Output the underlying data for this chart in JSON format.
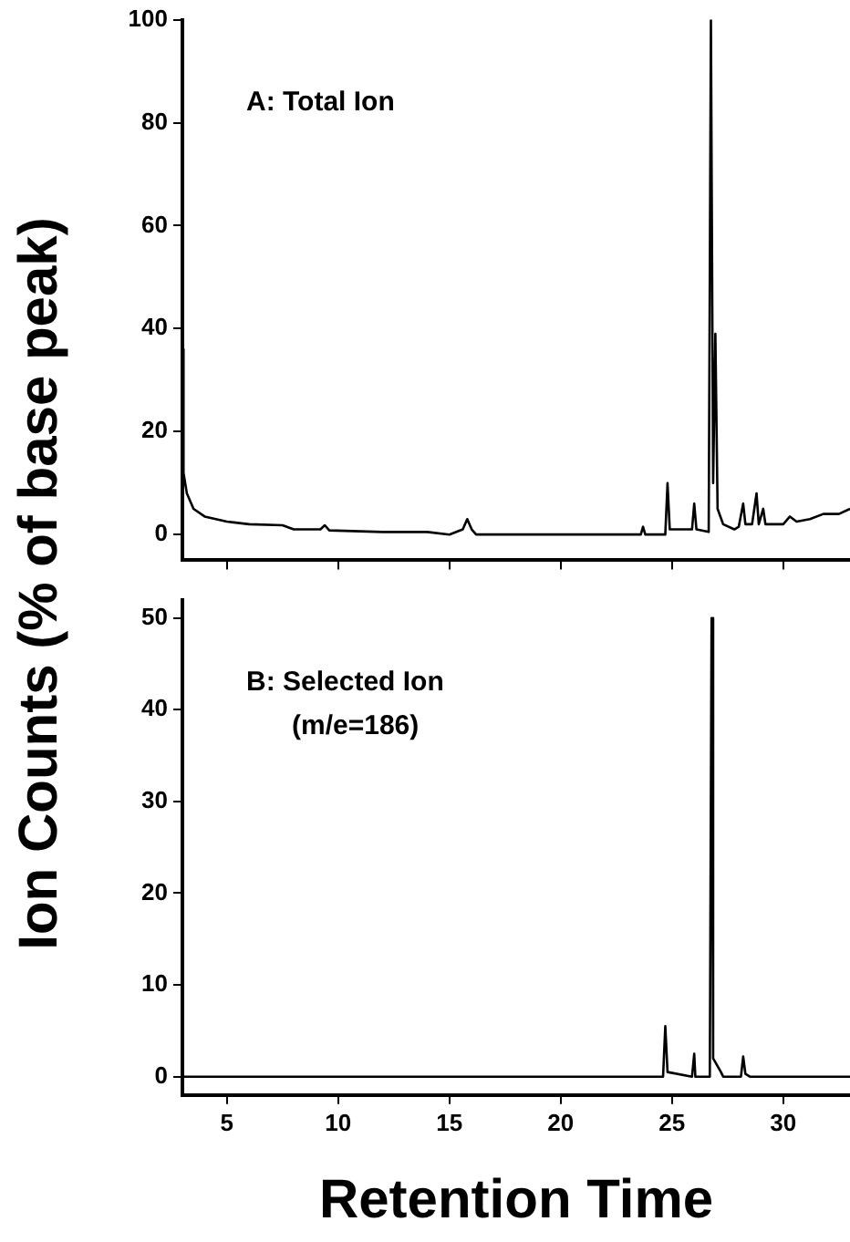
{
  "chart_data": [
    {
      "type": "line",
      "ylabel": "Ion Counts (% of base peak)",
      "annotations": [
        "A: Total Ion"
      ],
      "tick_labels": "y",
      "marker": "none",
      "xlim": [
        3,
        33
      ],
      "xticks": [
        5,
        10,
        15,
        20,
        25,
        30
      ],
      "ylim": [
        -5,
        100
      ],
      "yticks": [
        0,
        20,
        40,
        60,
        80,
        100
      ],
      "x": [
        3.0,
        3.05,
        3.2,
        3.5,
        4,
        5,
        6,
        7.5,
        8,
        9.2,
        9.4,
        9.6,
        12,
        14,
        15,
        15.6,
        15.8,
        16,
        16.2,
        18,
        22,
        23.6,
        23.7,
        23.8,
        24.7,
        24.8,
        24.9,
        25.9,
        26.0,
        26.1,
        26.65,
        26.75,
        26.85,
        26.95,
        27.05,
        27.3,
        27.8,
        28.0,
        28.2,
        28.3,
        28.6,
        28.8,
        28.9,
        29.1,
        29.2,
        30,
        30.3,
        30.6,
        31.2,
        31.8,
        32.5,
        33
      ],
      "series": [
        {
          "color": "#000000",
          "values": [
            36,
            12,
            8,
            5,
            3.5,
            2.5,
            2,
            1.8,
            1,
            1,
            1.8,
            0.8,
            0.5,
            0.5,
            0,
            1,
            3,
            1,
            0,
            0,
            0,
            0,
            1.5,
            0,
            0,
            10,
            1,
            1,
            6,
            1,
            0.5,
            100,
            10,
            39,
            5,
            2,
            1,
            1.5,
            6,
            2,
            2,
            8,
            2,
            5,
            2,
            2,
            3.5,
            2.5,
            3,
            4,
            4,
            5
          ]
        }
      ]
    },
    {
      "type": "line",
      "xlabel": "Retention Time",
      "annotations": [
        "B: Selected Ion",
        "(m/e=186)"
      ],
      "marker": "none",
      "xlim": [
        3,
        33
      ],
      "xticks": [
        5,
        10,
        15,
        20,
        25,
        30
      ],
      "ylim": [
        -2,
        52
      ],
      "yticks": [
        0,
        10,
        20,
        30,
        40,
        50
      ],
      "x": [
        3,
        24.6,
        24.7,
        24.8,
        25.9,
        26.0,
        26.05,
        26.7,
        26.78,
        26.85,
        27.2,
        27.3,
        28.1,
        28.2,
        28.3,
        28.5,
        33
      ],
      "series": [
        {
          "color": "#000000",
          "values": [
            0,
            0,
            5.5,
            0.5,
            0,
            2.5,
            0,
            0,
            50,
            2,
            0.5,
            0,
            0,
            2.2,
            0.3,
            0,
            0
          ]
        }
      ]
    }
  ]
}
